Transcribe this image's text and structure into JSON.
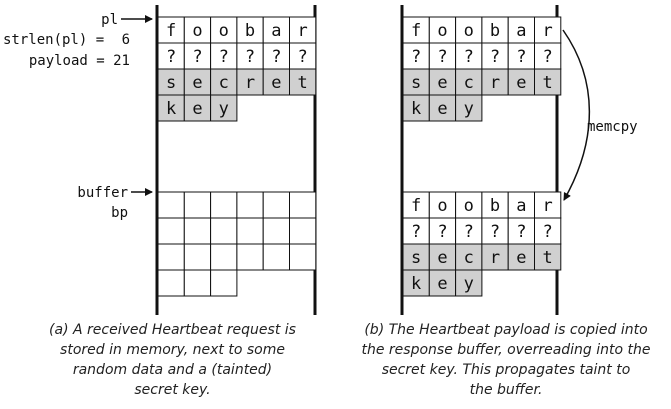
{
  "panel_a": {
    "labels": {
      "pl": "pl",
      "strlen": "strlen(pl) =",
      "strlen_value": "6",
      "payload": "payload = 21",
      "buffer": "buffer",
      "bp": "bp"
    },
    "rows": [
      [
        "f",
        "o",
        "o",
        "b",
        "a",
        "r"
      ],
      [
        "?",
        "?",
        "?",
        "?",
        "?",
        "?"
      ],
      [
        "s",
        "e",
        "c",
        "r",
        "e",
        "t"
      ],
      [
        "k",
        "e",
        "y"
      ]
    ],
    "shaded_rows": [
      2,
      3
    ],
    "buffer_rows": [
      [
        "",
        "",
        "",
        "",
        "",
        ""
      ],
      [
        "",
        "",
        "",
        "",
        "",
        ""
      ],
      [
        "",
        "",
        "",
        "",
        "",
        ""
      ],
      [
        "",
        "",
        ""
      ]
    ],
    "caption": [
      "(a) A received Heartbeat request is",
      "stored in memory, next to some",
      "random data and a (tainted)",
      "secret key."
    ]
  },
  "panel_b": {
    "rows": [
      [
        "f",
        "o",
        "o",
        "b",
        "a",
        "r"
      ],
      [
        "?",
        "?",
        "?",
        "?",
        "?",
        "?"
      ],
      [
        "s",
        "e",
        "c",
        "r",
        "e",
        "t"
      ],
      [
        "k",
        "e",
        "y"
      ]
    ],
    "shaded_rows": [
      2,
      3
    ],
    "copy_rows": [
      [
        "f",
        "o",
        "o",
        "b",
        "a",
        "r"
      ],
      [
        "?",
        "?",
        "?",
        "?",
        "?",
        "?"
      ],
      [
        "s",
        "e",
        "c",
        "r",
        "e",
        "t"
      ],
      [
        "k",
        "e",
        "y"
      ]
    ],
    "copy_shaded_rows": [
      2,
      3
    ],
    "arrow_label": "memcpy",
    "caption": [
      "(b) The Heartbeat payload is copied into",
      "the response buffer, overreading into the",
      "secret key. This propagates taint to",
      "the buffer."
    ]
  },
  "colors": {
    "shade": "#d0d0d0",
    "line": "#111111",
    "background": "#ffffff"
  }
}
